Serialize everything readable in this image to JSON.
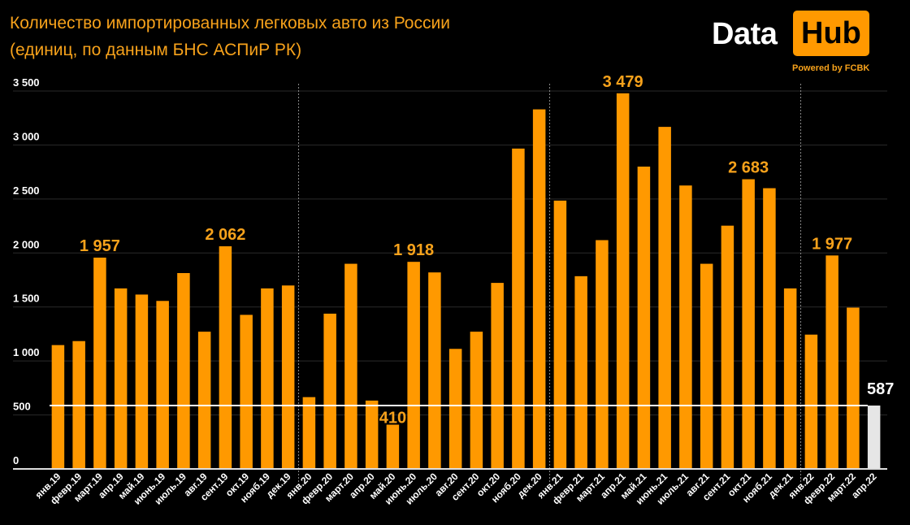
{
  "chart_data": {
    "type": "bar",
    "title": "Количество импортированных легковых авто из России",
    "subtitle": "(единиц, по данным БНС АСПиР РК)",
    "xlabel": "",
    "ylabel": "",
    "ylim": [
      0,
      3500
    ],
    "yticks": [
      0,
      500,
      1000,
      1500,
      2000,
      2500,
      3000,
      3500
    ],
    "ytick_labels": [
      "0",
      "500",
      "1 000",
      "1 500",
      "2 000",
      "2 500",
      "3 000",
      "3 500"
    ],
    "grid": true,
    "categories": [
      "янв.19",
      "февр.19",
      "март.19",
      "апр.19",
      "май.19",
      "июнь.19",
      "июль.19",
      "авг.19",
      "сент.19",
      "окт.19",
      "нояб.19",
      "дек.19",
      "янв.20",
      "февр.20",
      "март.20",
      "апр.20",
      "май.20",
      "июнь.20",
      "июль.20",
      "авг.20",
      "сент.20",
      "окт.20",
      "нояб.20",
      "дек.20",
      "янв.21",
      "февр.21",
      "март.21",
      "апр.21",
      "май.21",
      "июнь.21",
      "июль.21",
      "авг.21",
      "сент.21",
      "окт.21",
      "нояб.21",
      "дек.21",
      "янв.22",
      "февр.22",
      "март.22",
      "апр.22"
    ],
    "values": [
      1147,
      1184,
      1957,
      1672,
      1615,
      1556,
      1814,
      1271,
      2062,
      1427,
      1672,
      1699,
      665,
      1438,
      1900,
      633,
      410,
      1918,
      1820,
      1112,
      1271,
      1723,
      2967,
      3330,
      2485,
      1785,
      2119,
      3479,
      2800,
      3168,
      2625,
      1900,
      2253,
      2683,
      2600,
      1672,
      1244,
      1977,
      1494,
      587
    ],
    "data_labels": [
      {
        "category": "март.19",
        "text": "1 957"
      },
      {
        "category": "сент.19",
        "text": "2 062"
      },
      {
        "category": "май.20",
        "text": "410"
      },
      {
        "category": "июнь.20",
        "text": "1 918"
      },
      {
        "category": "апр.21",
        "text": "3 479"
      },
      {
        "category": "окт.21",
        "text": "2 683"
      },
      {
        "category": "февр.22",
        "text": "1 977"
      },
      {
        "category": "апр.22",
        "text": "587"
      }
    ],
    "reference_line": 587,
    "year_separators": [
      "янв.20",
      "янв.21",
      "янв.22"
    ],
    "colors": {
      "bar": "#ff9900",
      "highlight_bar": "#e6e6e6",
      "label": "#f7a21b",
      "reference_line": "#ffffff"
    }
  },
  "logo": {
    "word1": "Data",
    "word2": "Hub",
    "tagline": "Powered by FCBK"
  }
}
